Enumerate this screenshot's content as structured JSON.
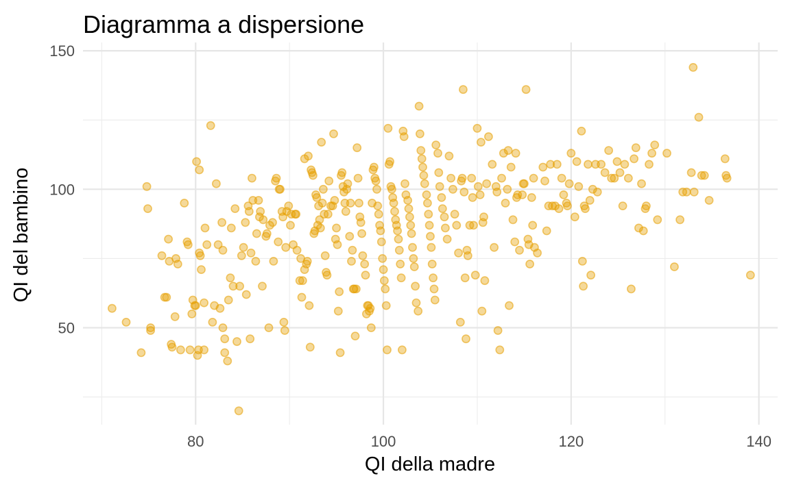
{
  "chart_data": {
    "type": "scatter",
    "title": "Diagramma a dispersione",
    "xlabel": "QI della madre",
    "ylabel": "QI del bambino",
    "xlim": [
      68,
      142
    ],
    "ylim": [
      15,
      153
    ],
    "x_ticks": [
      80,
      100,
      120,
      140
    ],
    "x_minor_ticks": [
      70,
      90,
      110,
      130
    ],
    "y_ticks": [
      50,
      100,
      150
    ],
    "y_minor_ticks": [
      25,
      75,
      125
    ],
    "grid": true,
    "point_color": "#E69F00",
    "points": [
      [
        71.1,
        57
      ],
      [
        72.6,
        52
      ],
      [
        74.2,
        41
      ],
      [
        74.8,
        101
      ],
      [
        74.9,
        93
      ],
      [
        75.2,
        50
      ],
      [
        75.2,
        49
      ],
      [
        76.4,
        76
      ],
      [
        76.7,
        61
      ],
      [
        76.9,
        61
      ],
      [
        77.1,
        82
      ],
      [
        77.2,
        74
      ],
      [
        77.4,
        44
      ],
      [
        77.5,
        43
      ],
      [
        77.8,
        54
      ],
      [
        77.9,
        75
      ],
      [
        78.1,
        73
      ],
      [
        78.4,
        42
      ],
      [
        78.8,
        95
      ],
      [
        79.1,
        81
      ],
      [
        79.2,
        80
      ],
      [
        79.4,
        42
      ],
      [
        79.6,
        55
      ],
      [
        79.7,
        60
      ],
      [
        79.9,
        58
      ],
      [
        80.0,
        58
      ],
      [
        80.1,
        110
      ],
      [
        80.2,
        40
      ],
      [
        80.3,
        42
      ],
      [
        80.4,
        107
      ],
      [
        80.4,
        77
      ],
      [
        80.5,
        76
      ],
      [
        80.6,
        71
      ],
      [
        80.9,
        59
      ],
      [
        80.9,
        42
      ],
      [
        81.0,
        86
      ],
      [
        81.2,
        80
      ],
      [
        81.6,
        123
      ],
      [
        81.8,
        52
      ],
      [
        82.0,
        58
      ],
      [
        82.2,
        102
      ],
      [
        82.4,
        80
      ],
      [
        82.6,
        57
      ],
      [
        82.8,
        88
      ],
      [
        82.9,
        78
      ],
      [
        82.9,
        50
      ],
      [
        83.1,
        46
      ],
      [
        83.1,
        41
      ],
      [
        83.4,
        38
      ],
      [
        83.5,
        60
      ],
      [
        83.7,
        68
      ],
      [
        83.8,
        86
      ],
      [
        84.0,
        65
      ],
      [
        84.2,
        93
      ],
      [
        84.4,
        45
      ],
      [
        84.6,
        20
      ],
      [
        84.7,
        65
      ],
      [
        84.9,
        76
      ],
      [
        85.1,
        79
      ],
      [
        85.3,
        88
      ],
      [
        85.4,
        62
      ],
      [
        85.6,
        94
      ],
      [
        85.7,
        92
      ],
      [
        85.8,
        46
      ],
      [
        85.9,
        77
      ],
      [
        86.0,
        104
      ],
      [
        86.1,
        96
      ],
      [
        86.4,
        74
      ],
      [
        86.5,
        84
      ],
      [
        86.7,
        96
      ],
      [
        86.8,
        90
      ],
      [
        86.9,
        92
      ],
      [
        87.1,
        65
      ],
      [
        87.2,
        89
      ],
      [
        87.5,
        83
      ],
      [
        87.6,
        84
      ],
      [
        87.8,
        50
      ],
      [
        87.9,
        87
      ],
      [
        88.2,
        88
      ],
      [
        88.3,
        74
      ],
      [
        88.5,
        103
      ],
      [
        88.6,
        104
      ],
      [
        88.8,
        81
      ],
      [
        88.9,
        100
      ],
      [
        89.0,
        100
      ],
      [
        89.2,
        92
      ],
      [
        89.3,
        90
      ],
      [
        89.4,
        52
      ],
      [
        89.5,
        49
      ],
      [
        89.6,
        79
      ],
      [
        89.7,
        92
      ],
      [
        89.9,
        94
      ],
      [
        90.1,
        87
      ],
      [
        90.2,
        91
      ],
      [
        90.4,
        80
      ],
      [
        90.6,
        91
      ],
      [
        90.7,
        91
      ],
      [
        90.8,
        78
      ],
      [
        91.1,
        67
      ],
      [
        91.2,
        75
      ],
      [
        91.3,
        61
      ],
      [
        91.4,
        67
      ],
      [
        91.6,
        111
      ],
      [
        91.6,
        71
      ],
      [
        91.8,
        73
      ],
      [
        91.9,
        74
      ],
      [
        92.0,
        112
      ],
      [
        92.1,
        58
      ],
      [
        92.2,
        43
      ],
      [
        92.3,
        107
      ],
      [
        92.4,
        106
      ],
      [
        92.5,
        105
      ],
      [
        92.6,
        84
      ],
      [
        92.7,
        85
      ],
      [
        92.8,
        98
      ],
      [
        92.9,
        97
      ],
      [
        93.0,
        87
      ],
      [
        93.1,
        94
      ],
      [
        93.2,
        89
      ],
      [
        93.3,
        86
      ],
      [
        93.4,
        117
      ],
      [
        93.5,
        95
      ],
      [
        93.6,
        100
      ],
      [
        93.7,
        91
      ],
      [
        93.8,
        76
      ],
      [
        93.9,
        70
      ],
      [
        94.0,
        69
      ],
      [
        94.1,
        91
      ],
      [
        94.2,
        103
      ],
      [
        94.4,
        94
      ],
      [
        94.6,
        94
      ],
      [
        94.7,
        120
      ],
      [
        94.8,
        96
      ],
      [
        94.9,
        82
      ],
      [
        95.0,
        86
      ],
      [
        95.1,
        80
      ],
      [
        95.2,
        56
      ],
      [
        95.3,
        63
      ],
      [
        95.4,
        41
      ],
      [
        95.5,
        105
      ],
      [
        95.6,
        106
      ],
      [
        95.7,
        101
      ],
      [
        95.8,
        99
      ],
      [
        95.9,
        95
      ],
      [
        96.0,
        92
      ],
      [
        96.1,
        100
      ],
      [
        96.2,
        102
      ],
      [
        96.4,
        83
      ],
      [
        96.5,
        95
      ],
      [
        96.6,
        74
      ],
      [
        96.7,
        78
      ],
      [
        96.8,
        64
      ],
      [
        96.9,
        64
      ],
      [
        97.0,
        47
      ],
      [
        97.1,
        64
      ],
      [
        97.2,
        115
      ],
      [
        97.3,
        104
      ],
      [
        97.4,
        95
      ],
      [
        97.5,
        90
      ],
      [
        97.6,
        88
      ],
      [
        97.7,
        84
      ],
      [
        97.8,
        76
      ],
      [
        98.0,
        73
      ],
      [
        98.1,
        69
      ],
      [
        98.2,
        55
      ],
      [
        98.3,
        58
      ],
      [
        98.4,
        58
      ],
      [
        98.5,
        56
      ],
      [
        98.6,
        57
      ],
      [
        98.7,
        50
      ],
      [
        98.8,
        95
      ],
      [
        98.9,
        107
      ],
      [
        99.0,
        108
      ],
      [
        99.1,
        104
      ],
      [
        99.2,
        103
      ],
      [
        99.3,
        100
      ],
      [
        99.4,
        94
      ],
      [
        99.5,
        91
      ],
      [
        99.6,
        87
      ],
      [
        99.7,
        85
      ],
      [
        99.8,
        81
      ],
      [
        99.9,
        75
      ],
      [
        100.0,
        71
      ],
      [
        100.1,
        67
      ],
      [
        100.2,
        64
      ],
      [
        100.3,
        58
      ],
      [
        100.4,
        42
      ],
      [
        100.5,
        122
      ],
      [
        100.6,
        109
      ],
      [
        100.7,
        110
      ],
      [
        100.8,
        101
      ],
      [
        100.9,
        100
      ],
      [
        101.0,
        97
      ],
      [
        101.1,
        95
      ],
      [
        101.2,
        92
      ],
      [
        101.3,
        89
      ],
      [
        101.4,
        87
      ],
      [
        101.5,
        85
      ],
      [
        101.6,
        82
      ],
      [
        101.7,
        78
      ],
      [
        101.8,
        73
      ],
      [
        101.9,
        68
      ],
      [
        102.0,
        42
      ],
      [
        102.1,
        121
      ],
      [
        102.2,
        119
      ],
      [
        102.3,
        102
      ],
      [
        102.4,
        98
      ],
      [
        102.6,
        96
      ],
      [
        102.7,
        93
      ],
      [
        102.8,
        90
      ],
      [
        102.9,
        87
      ],
      [
        103.0,
        84
      ],
      [
        103.1,
        79
      ],
      [
        103.2,
        75
      ],
      [
        103.3,
        72
      ],
      [
        103.4,
        65
      ],
      [
        103.5,
        59
      ],
      [
        103.7,
        56
      ],
      [
        103.8,
        130
      ],
      [
        103.9,
        120
      ],
      [
        104.0,
        114
      ],
      [
        104.1,
        111
      ],
      [
        104.2,
        108
      ],
      [
        104.3,
        105
      ],
      [
        104.4,
        102
      ],
      [
        104.6,
        98
      ],
      [
        104.7,
        95
      ],
      [
        104.8,
        91
      ],
      [
        104.9,
        87
      ],
      [
        105.0,
        83
      ],
      [
        105.1,
        79
      ],
      [
        105.2,
        73
      ],
      [
        105.3,
        68
      ],
      [
        105.4,
        64
      ],
      [
        105.5,
        60
      ],
      [
        105.6,
        116
      ],
      [
        105.8,
        113
      ],
      [
        105.9,
        106
      ],
      [
        106.0,
        101
      ],
      [
        106.2,
        97
      ],
      [
        106.3,
        93
      ],
      [
        106.5,
        90
      ],
      [
        106.6,
        86
      ],
      [
        106.8,
        82
      ],
      [
        107.0,
        112
      ],
      [
        107.2,
        104
      ],
      [
        107.4,
        100
      ],
      [
        107.6,
        91
      ],
      [
        107.8,
        87
      ],
      [
        108.0,
        77
      ],
      [
        108.2,
        52
      ],
      [
        108.3,
        103
      ],
      [
        108.4,
        104
      ],
      [
        108.5,
        136
      ],
      [
        108.6,
        99
      ],
      [
        108.7,
        68
      ],
      [
        108.8,
        46
      ],
      [
        108.9,
        78
      ],
      [
        109.0,
        76
      ],
      [
        109.2,
        87
      ],
      [
        109.4,
        104
      ],
      [
        109.5,
        97
      ],
      [
        109.6,
        87
      ],
      [
        109.8,
        69
      ],
      [
        110.0,
        122
      ],
      [
        110.1,
        101
      ],
      [
        110.3,
        98
      ],
      [
        110.4,
        117
      ],
      [
        110.5,
        56
      ],
      [
        110.6,
        88
      ],
      [
        110.7,
        90
      ],
      [
        110.8,
        67
      ],
      [
        111.0,
        102
      ],
      [
        111.2,
        119
      ],
      [
        111.6,
        109
      ],
      [
        111.8,
        79
      ],
      [
        112.0,
        101
      ],
      [
        112.1,
        99
      ],
      [
        112.2,
        49
      ],
      [
        112.4,
        42
      ],
      [
        112.6,
        104
      ],
      [
        112.8,
        113
      ],
      [
        113.0,
        95
      ],
      [
        113.2,
        100
      ],
      [
        113.3,
        114
      ],
      [
        113.4,
        58
      ],
      [
        113.6,
        108
      ],
      [
        113.8,
        89
      ],
      [
        114.0,
        81
      ],
      [
        114.1,
        113
      ],
      [
        114.2,
        97
      ],
      [
        114.3,
        98
      ],
      [
        114.5,
        78
      ],
      [
        114.8,
        98
      ],
      [
        114.9,
        102
      ],
      [
        115.0,
        102
      ],
      [
        115.2,
        136
      ],
      [
        115.4,
        82
      ],
      [
        115.5,
        80
      ],
      [
        115.6,
        73
      ],
      [
        115.8,
        97
      ],
      [
        115.9,
        87
      ],
      [
        116.0,
        104
      ],
      [
        116.1,
        79
      ],
      [
        116.4,
        77
      ],
      [
        117.0,
        108
      ],
      [
        117.2,
        103
      ],
      [
        117.4,
        85
      ],
      [
        117.6,
        94
      ],
      [
        117.8,
        109
      ],
      [
        118.0,
        94
      ],
      [
        118.3,
        94
      ],
      [
        118.5,
        109
      ],
      [
        118.7,
        93
      ],
      [
        119.0,
        104
      ],
      [
        119.2,
        98
      ],
      [
        119.5,
        95
      ],
      [
        119.6,
        94
      ],
      [
        119.8,
        102
      ],
      [
        120.0,
        113
      ],
      [
        120.4,
        90
      ],
      [
        120.6,
        110
      ],
      [
        120.8,
        101
      ],
      [
        121.1,
        121
      ],
      [
        121.2,
        74
      ],
      [
        121.3,
        65
      ],
      [
        121.4,
        94
      ],
      [
        121.5,
        93
      ],
      [
        121.8,
        109
      ],
      [
        122.0,
        96
      ],
      [
        122.1,
        69
      ],
      [
        122.3,
        100
      ],
      [
        122.6,
        109
      ],
      [
        122.8,
        99
      ],
      [
        123.2,
        109
      ],
      [
        123.6,
        106
      ],
      [
        124.0,
        114
      ],
      [
        124.3,
        104
      ],
      [
        124.6,
        104
      ],
      [
        124.9,
        110
      ],
      [
        125.2,
        106
      ],
      [
        125.5,
        94
      ],
      [
        125.7,
        109
      ],
      [
        126.1,
        104
      ],
      [
        126.4,
        64
      ],
      [
        126.7,
        111
      ],
      [
        126.9,
        115
      ],
      [
        127.2,
        86
      ],
      [
        127.5,
        102
      ],
      [
        127.7,
        85
      ],
      [
        127.9,
        93
      ],
      [
        128.0,
        94
      ],
      [
        128.3,
        109
      ],
      [
        128.6,
        113
      ],
      [
        128.9,
        116
      ],
      [
        129.2,
        89
      ],
      [
        130.2,
        113
      ],
      [
        131.0,
        72
      ],
      [
        131.6,
        89
      ],
      [
        131.9,
        99
      ],
      [
        132.3,
        99
      ],
      [
        132.8,
        106
      ],
      [
        133.0,
        144
      ],
      [
        133.1,
        99
      ],
      [
        133.6,
        126
      ],
      [
        133.9,
        105
      ],
      [
        134.2,
        105
      ],
      [
        134.7,
        96
      ],
      [
        136.4,
        111
      ],
      [
        136.5,
        105
      ],
      [
        136.6,
        104
      ],
      [
        139.1,
        69
      ]
    ]
  }
}
